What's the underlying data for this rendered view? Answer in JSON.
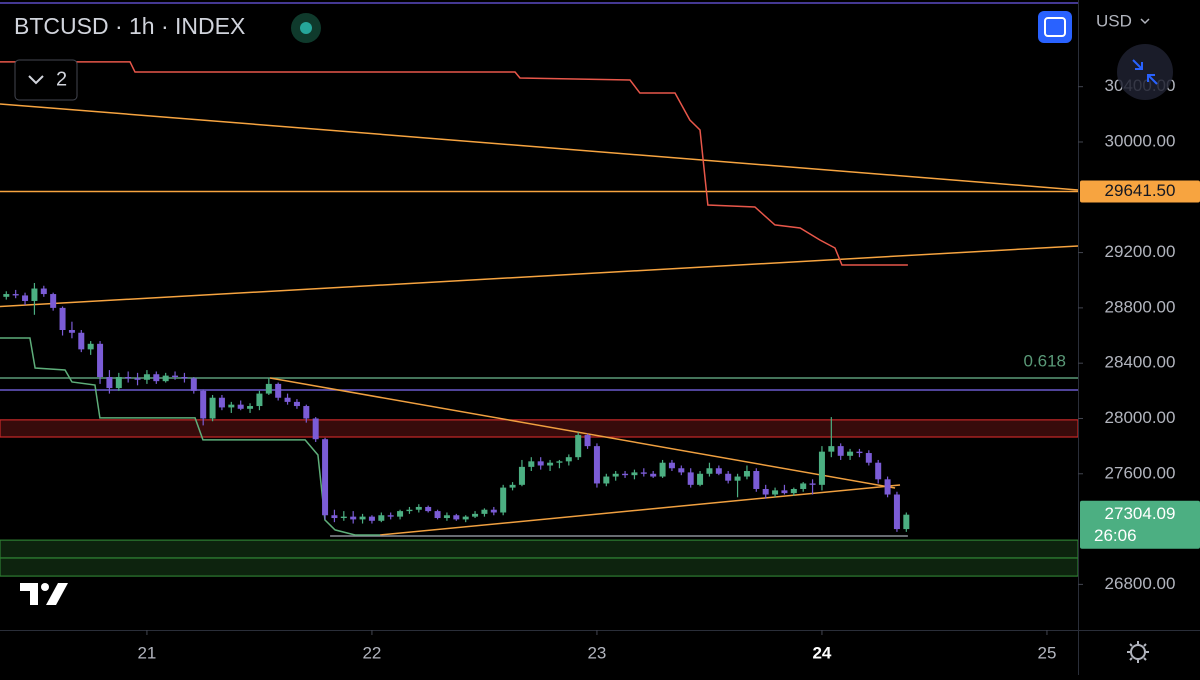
{
  "chart_data": {
    "type": "candlestick",
    "title": "BTCUSD · 1h · INDEX",
    "currency": "USD",
    "indicator_count": "2",
    "up_color": "#4caf82",
    "down_color": "#7b5cd6",
    "xlim": [
      20.347,
      25.138
    ],
    "ylim": [
      26470,
      31027
    ],
    "xticks": [
      21,
      22,
      23,
      24,
      25
    ],
    "highlight_xtick_index": 3,
    "yticks": [
      {
        "value": 30400,
        "label": "30400.00"
      },
      {
        "value": 30000,
        "label": "30000.00"
      },
      {
        "value": 29200,
        "label": "29200.00"
      },
      {
        "value": 28800,
        "label": "28800.00"
      },
      {
        "value": 28400,
        "label": "28400.00"
      },
      {
        "value": 28000,
        "label": "28000.00"
      },
      {
        "value": 27600,
        "label": "27600.00"
      },
      {
        "value": 26800,
        "label": "26800.00"
      }
    ],
    "last_price": 27304.09,
    "countdown": "26:06",
    "x": [
      20.375,
      20.4167,
      20.4583,
      20.5,
      20.5417,
      20.5833,
      20.625,
      20.6667,
      20.7083,
      20.75,
      20.7917,
      20.8333,
      20.875,
      20.9167,
      20.9583,
      21,
      21.0417,
      21.0833,
      21.125,
      21.1667,
      21.2083,
      21.25,
      21.2917,
      21.3333,
      21.375,
      21.4167,
      21.4583,
      21.5,
      21.5417,
      21.5833,
      21.625,
      21.6667,
      21.7083,
      21.75,
      21.7917,
      21.8333,
      21.875,
      21.9167,
      21.9583,
      22,
      22.0417,
      22.0833,
      22.125,
      22.1667,
      22.2083,
      22.25,
      22.2917,
      22.3333,
      22.375,
      22.4167,
      22.4583,
      22.5,
      22.5417,
      22.5833,
      22.625,
      22.6667,
      22.7083,
      22.75,
      22.7917,
      22.8333,
      22.875,
      22.9167,
      22.9583,
      23,
      23.0417,
      23.0833,
      23.125,
      23.1667,
      23.2083,
      23.25,
      23.2917,
      23.3333,
      23.375,
      23.4167,
      23.4583,
      23.5,
      23.5417,
      23.5833,
      23.625,
      23.6667,
      23.7083,
      23.75,
      23.7917,
      23.8333,
      23.875,
      23.9167,
      23.9583,
      24,
      24.0417,
      24.0833,
      24.125,
      24.1667,
      24.2083,
      24.25,
      24.2917,
      24.3333,
      24.375
    ],
    "candles": [
      [
        28880,
        28920,
        28860,
        28900
      ],
      [
        28900,
        28930,
        28870,
        28890
      ],
      [
        28890,
        28910,
        28820,
        28850
      ],
      [
        28850,
        28980,
        28750,
        28940
      ],
      [
        28940,
        28960,
        28880,
        28900
      ],
      [
        28900,
        28910,
        28780,
        28800
      ],
      [
        28800,
        28810,
        28600,
        28640
      ],
      [
        28640,
        28700,
        28580,
        28620
      ],
      [
        28620,
        28640,
        28480,
        28500
      ],
      [
        28500,
        28560,
        28460,
        28540
      ],
      [
        28540,
        28560,
        28250,
        28300
      ],
      [
        28300,
        28350,
        28180,
        28220
      ],
      [
        28220,
        28330,
        28200,
        28300
      ],
      [
        28300,
        28340,
        28260,
        28290
      ],
      [
        28290,
        28330,
        28240,
        28280
      ],
      [
        28280,
        28350,
        28250,
        28320
      ],
      [
        28320,
        28340,
        28250,
        28270
      ],
      [
        28270,
        28330,
        28260,
        28310
      ],
      [
        28310,
        28340,
        28280,
        28300
      ],
      [
        28300,
        28330,
        28260,
        28290
      ],
      [
        28290,
        28300,
        28180,
        28200
      ],
      [
        28200,
        28210,
        27950,
        28000
      ],
      [
        28000,
        28170,
        27980,
        28150
      ],
      [
        28150,
        28170,
        28060,
        28080
      ],
      [
        28080,
        28120,
        28040,
        28100
      ],
      [
        28100,
        28130,
        28060,
        28070
      ],
      [
        28070,
        28110,
        28040,
        28090
      ],
      [
        28090,
        28200,
        28060,
        28180
      ],
      [
        28180,
        28290,
        28170,
        28250
      ],
      [
        28250,
        28260,
        28130,
        28150
      ],
      [
        28150,
        28180,
        28100,
        28120
      ],
      [
        28120,
        28140,
        28070,
        28090
      ],
      [
        28090,
        28100,
        27970,
        28000
      ],
      [
        28000,
        28010,
        27830,
        27850
      ],
      [
        27850,
        27860,
        27270,
        27300
      ],
      [
        27300,
        27340,
        27250,
        27280
      ],
      [
        27280,
        27330,
        27260,
        27290
      ],
      [
        27290,
        27330,
        27240,
        27270
      ],
      [
        27270,
        27310,
        27240,
        27290
      ],
      [
        27290,
        27300,
        27240,
        27260
      ],
      [
        27260,
        27320,
        27250,
        27300
      ],
      [
        27300,
        27320,
        27270,
        27290
      ],
      [
        27290,
        27340,
        27270,
        27330
      ],
      [
        27330,
        27360,
        27310,
        27340
      ],
      [
        27340,
        27380,
        27320,
        27360
      ],
      [
        27360,
        27370,
        27320,
        27330
      ],
      [
        27330,
        27340,
        27270,
        27280
      ],
      [
        27280,
        27320,
        27260,
        27300
      ],
      [
        27300,
        27310,
        27260,
        27270
      ],
      [
        27270,
        27300,
        27250,
        27290
      ],
      [
        27290,
        27330,
        27280,
        27310
      ],
      [
        27310,
        27350,
        27290,
        27340
      ],
      [
        27340,
        27360,
        27300,
        27320
      ],
      [
        27320,
        27520,
        27300,
        27500
      ],
      [
        27500,
        27540,
        27480,
        27520
      ],
      [
        27520,
        27700,
        27510,
        27650
      ],
      [
        27650,
        27720,
        27620,
        27690
      ],
      [
        27690,
        27720,
        27630,
        27660
      ],
      [
        27660,
        27700,
        27620,
        27680
      ],
      [
        27680,
        27700,
        27640,
        27690
      ],
      [
        27690,
        27740,
        27660,
        27720
      ],
      [
        27720,
        27900,
        27700,
        27880
      ],
      [
        27880,
        27890,
        27780,
        27800
      ],
      [
        27800,
        27820,
        27500,
        27530
      ],
      [
        27530,
        27600,
        27510,
        27580
      ],
      [
        27580,
        27620,
        27550,
        27600
      ],
      [
        27600,
        27620,
        27570,
        27590
      ],
      [
        27590,
        27630,
        27560,
        27610
      ],
      [
        27610,
        27640,
        27580,
        27600
      ],
      [
        27600,
        27620,
        27570,
        27580
      ],
      [
        27580,
        27700,
        27570,
        27680
      ],
      [
        27680,
        27700,
        27620,
        27640
      ],
      [
        27640,
        27660,
        27590,
        27610
      ],
      [
        27610,
        27640,
        27500,
        27520
      ],
      [
        27520,
        27620,
        27510,
        27600
      ],
      [
        27600,
        27680,
        27580,
        27640
      ],
      [
        27640,
        27660,
        27590,
        27600
      ],
      [
        27600,
        27620,
        27530,
        27550
      ],
      [
        27550,
        27600,
        27430,
        27580
      ],
      [
        27580,
        27660,
        27560,
        27620
      ],
      [
        27620,
        27640,
        27470,
        27490
      ],
      [
        27490,
        27520,
        27420,
        27450
      ],
      [
        27450,
        27500,
        27430,
        27480
      ],
      [
        27480,
        27520,
        27450,
        27460
      ],
      [
        27460,
        27500,
        27440,
        27490
      ],
      [
        27490,
        27540,
        27470,
        27530
      ],
      [
        27530,
        27560,
        27450,
        27520
      ],
      [
        27520,
        27800,
        27480,
        27760
      ],
      [
        27760,
        28010,
        27720,
        27800
      ],
      [
        27800,
        27820,
        27700,
        27730
      ],
      [
        27730,
        27780,
        27700,
        27760
      ],
      [
        27760,
        27780,
        27720,
        27750
      ],
      [
        27750,
        27770,
        27660,
        27680
      ],
      [
        27680,
        27700,
        27530,
        27560
      ],
      [
        27560,
        27580,
        27430,
        27450
      ],
      [
        27450,
        27470,
        27180,
        27200
      ],
      [
        27200,
        27320,
        27180,
        27304.09
      ]
    ],
    "overlays": [
      {
        "type": "zone",
        "range": [
          26991,
          27120
        ],
        "color": "#2e7d32"
      },
      {
        "type": "zone",
        "range": [
          26860,
          26991
        ],
        "color": "#2e7d32"
      },
      {
        "type": "zone",
        "range": [
          27866,
          27990
        ],
        "color": "#c62828"
      },
      {
        "type": "hline",
        "value": 28206,
        "color": "#6a5acd"
      },
      {
        "type": "hline",
        "value": 28293,
        "label": "0.618",
        "color": "#5a9a78"
      },
      {
        "type": "hline",
        "value": {
          "value": 29641.5,
          "label": "29641.50"
        },
        "color": "#f7a440"
      },
      {
        "type": "line",
        "color": "#f7a440",
        "points": [
          [
            20.347,
            30275
          ],
          [
            25.138,
            29653
          ]
        ]
      },
      {
        "type": "line",
        "color": "#f7a440",
        "points": [
          [
            20.347,
            28810
          ],
          [
            25.138,
            29248
          ]
        ]
      },
      {
        "type": "line",
        "color": "#f0a040",
        "points": [
          [
            21.547,
            28293
          ],
          [
            24.325,
            27497
          ]
        ]
      },
      {
        "type": "line",
        "color": "#f0a040",
        "points": [
          [
            22.036,
            27157
          ],
          [
            24.347,
            27519
          ]
        ]
      },
      {
        "type": "line",
        "color": "#8a8f98",
        "points": [
          [
            21.814,
            27150
          ],
          [
            24.382,
            27150
          ]
        ]
      },
      {
        "type": "line",
        "color": "#e8574a",
        "points": [
          [
            20.347,
            30579
          ],
          [
            20.925,
            30579
          ],
          [
            20.947,
            30506
          ],
          [
            22.636,
            30506
          ],
          [
            22.658,
            30463
          ],
          [
            23.147,
            30448
          ],
          [
            23.191,
            30354
          ],
          [
            23.347,
            30354
          ],
          [
            23.413,
            30159
          ],
          [
            23.458,
            30087
          ],
          [
            23.493,
            29544
          ],
          [
            23.702,
            29530
          ],
          [
            23.791,
            29400
          ],
          [
            23.903,
            29378
          ],
          [
            23.991,
            29291
          ],
          [
            24.058,
            29233
          ],
          [
            24.089,
            29110
          ],
          [
            24.382,
            29110
          ]
        ]
      },
      {
        "type": "line",
        "color": "#5eae7a",
        "points": [
          [
            20.347,
            28582
          ],
          [
            20.48,
            28582
          ],
          [
            20.503,
            28365
          ],
          [
            20.636,
            28351
          ],
          [
            20.667,
            28264
          ],
          [
            20.769,
            28242
          ],
          [
            20.791,
            28004
          ],
          [
            21.214,
            28004
          ],
          [
            21.249,
            27845
          ],
          [
            21.703,
            27845
          ],
          [
            21.76,
            27736
          ],
          [
            21.791,
            27266
          ],
          [
            21.836,
            27194
          ],
          [
            21.925,
            27157
          ],
          [
            22.036,
            27157
          ]
        ]
      }
    ]
  }
}
